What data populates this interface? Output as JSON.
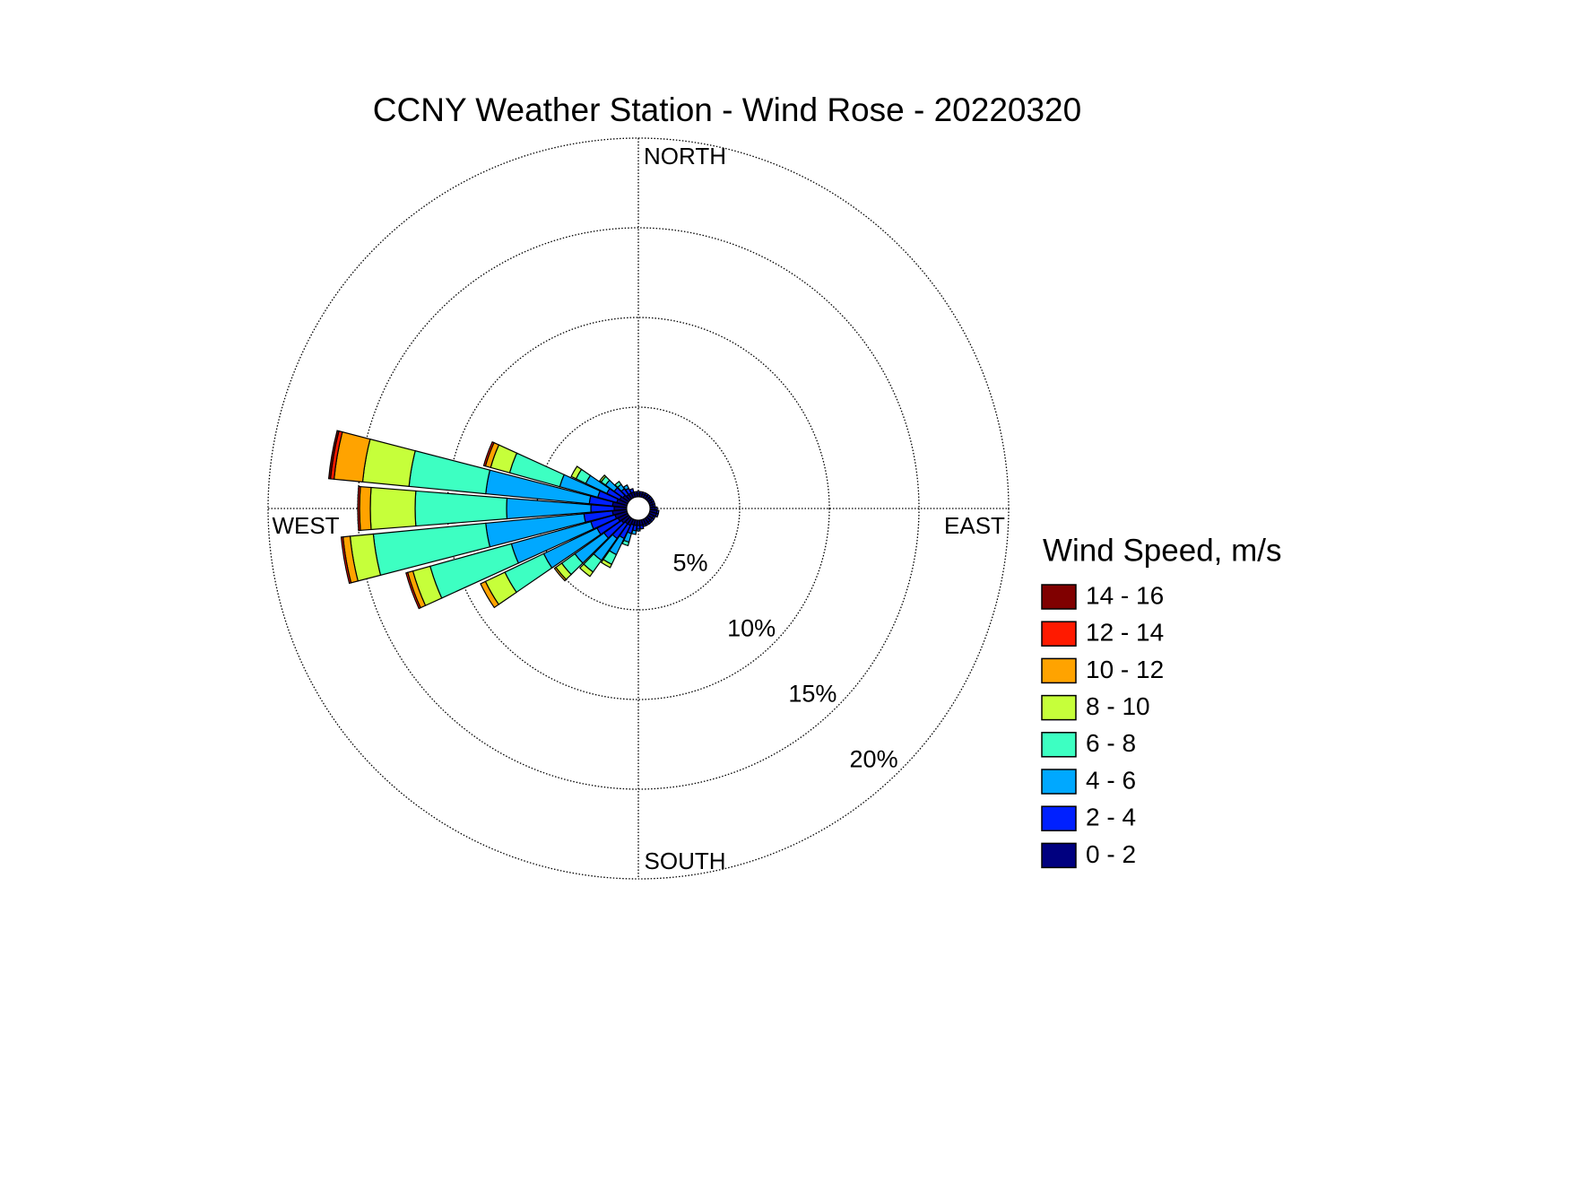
{
  "chart_data": {
    "type": "windrose",
    "title": "CCNY Weather Station - Wind Rose - 20220320",
    "direction_labels": [
      "NORTH",
      "EAST",
      "SOUTH",
      "WEST"
    ],
    "x": [
      0,
      10,
      20,
      30,
      40,
      50,
      60,
      70,
      80,
      90,
      100,
      110,
      120,
      130,
      140,
      150,
      160,
      170,
      180,
      190,
      200,
      210,
      220,
      230,
      240,
      250,
      260,
      270,
      280,
      290,
      300,
      310,
      320,
      330,
      340,
      350
    ],
    "xlim": [
      0,
      360
    ],
    "ylim": [
      0,
      20
    ],
    "yticks": [
      {
        "value": 5,
        "label": "5%"
      },
      {
        "value": 10,
        "label": "10%"
      },
      {
        "value": 15,
        "label": "15%"
      },
      {
        "value": 20,
        "label": "20%"
      }
    ],
    "grid": true,
    "legend_title": "Wind Speed, m/s",
    "series": [
      {
        "name": "0 - 2",
        "color": "#00007f",
        "values": [
          0.2,
          0.2,
          0.2,
          0.2,
          0.2,
          0.2,
          0.2,
          0.2,
          0.2,
          0.3,
          0.4,
          0.4,
          0.3,
          0.3,
          0.3,
          0.3,
          0.3,
          0.3,
          0.3,
          0.3,
          0.3,
          0.4,
          0.4,
          0.5,
          0.6,
          0.7,
          0.8,
          0.7,
          0.8,
          0.6,
          0.5,
          0.4,
          0.3,
          0.3,
          0.3,
          0.2
        ]
      },
      {
        "name": "2 - 4",
        "color": "#0020ff",
        "values": [
          0.1,
          0.1,
          0.1,
          0.1,
          0.1,
          0.1,
          0.1,
          0.1,
          0.1,
          0.1,
          0.1,
          0.1,
          0.1,
          0.1,
          0.1,
          0.1,
          0.1,
          0.2,
          0.2,
          0.3,
          0.5,
          0.8,
          1.0,
          1.2,
          1.3,
          1.4,
          1.6,
          1.3,
          1.3,
          1.1,
          0.8,
          0.6,
          0.4,
          0.3,
          0.2,
          0.1
        ]
      },
      {
        "name": "4 - 6",
        "color": "#00a8ff",
        "values": [
          0,
          0,
          0,
          0,
          0,
          0,
          0,
          0,
          0,
          0,
          0,
          0,
          0,
          0,
          0,
          0,
          0,
          0,
          0.1,
          0.2,
          0.5,
          1.0,
          1.5,
          2.0,
          3.3,
          4.6,
          5.5,
          4.7,
          5.8,
          2.2,
          1.3,
          0.6,
          0.3,
          0.2,
          0,
          0
        ]
      },
      {
        "name": "6 - 8",
        "color": "#3dffc2",
        "values": [
          0,
          0,
          0,
          0,
          0,
          0,
          0,
          0,
          0,
          0,
          0,
          0,
          0,
          0,
          0,
          0,
          0,
          0,
          0,
          0,
          0.2,
          0.6,
          0.8,
          0.9,
          2.4,
          4.7,
          6.3,
          5.1,
          4.3,
          2.9,
          0.6,
          0.3,
          0.2,
          0,
          0,
          0
        ]
      },
      {
        "name": "8 - 10",
        "color": "#c6ff3a",
        "values": [
          0,
          0,
          0,
          0,
          0,
          0,
          0,
          0,
          0,
          0,
          0,
          0,
          0,
          0,
          0,
          0,
          0,
          0,
          0,
          0,
          0,
          0.2,
          0.3,
          0.4,
          1.2,
          1.0,
          1.3,
          2.5,
          2.6,
          1.1,
          0.3,
          0.1,
          0,
          0,
          0,
          0
        ]
      },
      {
        "name": "10 - 12",
        "color": "#ffa300",
        "values": [
          0,
          0,
          0,
          0,
          0,
          0,
          0,
          0,
          0,
          0,
          0,
          0,
          0,
          0,
          0,
          0,
          0,
          0,
          0,
          0,
          0,
          0,
          0,
          0.1,
          0.3,
          0.3,
          0.4,
          0.6,
          1.6,
          0.3,
          0,
          0,
          0,
          0,
          0,
          0
        ]
      },
      {
        "name": "12 - 14",
        "color": "#ff1a00",
        "values": [
          0,
          0,
          0,
          0,
          0,
          0,
          0,
          0,
          0,
          0,
          0,
          0,
          0,
          0,
          0,
          0,
          0,
          0,
          0,
          0,
          0,
          0,
          0,
          0,
          0,
          0.1,
          0.1,
          0.1,
          0.2,
          0.1,
          0,
          0,
          0,
          0,
          0,
          0
        ]
      },
      {
        "name": "14 - 16",
        "color": "#800000",
        "values": [
          0,
          0,
          0,
          0,
          0,
          0,
          0,
          0,
          0,
          0,
          0,
          0,
          0,
          0,
          0,
          0,
          0,
          0,
          0,
          0,
          0,
          0,
          0,
          0,
          0,
          0,
          0,
          0,
          0.1,
          0,
          0,
          0,
          0,
          0,
          0,
          0
        ]
      }
    ]
  }
}
